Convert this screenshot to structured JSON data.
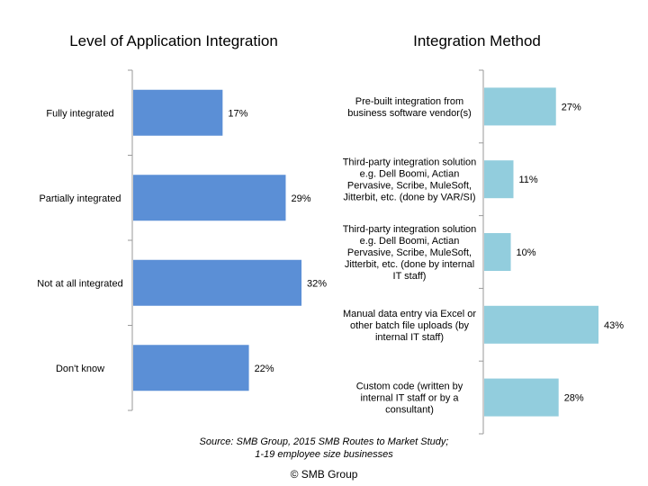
{
  "chart_data": [
    {
      "type": "bar",
      "orientation": "horizontal",
      "title": "Level of Application Integration",
      "categories": [
        "Fully integrated",
        "Partially integrated",
        "Not at all integrated",
        "Don't know"
      ],
      "values": [
        17,
        29,
        32,
        22
      ],
      "data_labels": [
        "17%",
        "29%",
        "32%",
        "22%"
      ],
      "xlim": [
        0,
        35
      ],
      "grid": false,
      "color": "#5b8fd6"
    },
    {
      "type": "bar",
      "orientation": "horizontal",
      "title": "Integration Method",
      "categories": [
        [
          "Pre-built integration from",
          "business software vendor(s)"
        ],
        [
          "Third-party integration solution",
          "e.g. Dell Boomi, Actian",
          "Pervasive, Scribe, MuleSoft,",
          "Jitterbit, etc. (done by VAR/SI)"
        ],
        [
          "Third-party integration solution",
          "e.g. Dell Boomi, Actian",
          "Pervasive, Scribe, MuleSoft,",
          "Jitterbit, etc. (done by internal",
          "IT staff)"
        ],
        [
          "Manual data entry via Excel or",
          "other batch file uploads (by",
          "internal IT staff)"
        ],
        [
          "Custom code (written by",
          "internal IT staff or by a",
          "consultant)"
        ]
      ],
      "values": [
        27,
        11,
        10,
        43,
        28
      ],
      "data_labels": [
        "27%",
        "11%",
        "10%",
        "43%",
        "28%"
      ],
      "xlim": [
        0,
        50
      ],
      "grid": false,
      "color": "#92cddd"
    }
  ],
  "source_line1": "Source: SMB Group, 2015 SMB Routes to Market Study;",
  "source_line2": "1-19 employee size businesses",
  "copyright": "© SMB Group"
}
